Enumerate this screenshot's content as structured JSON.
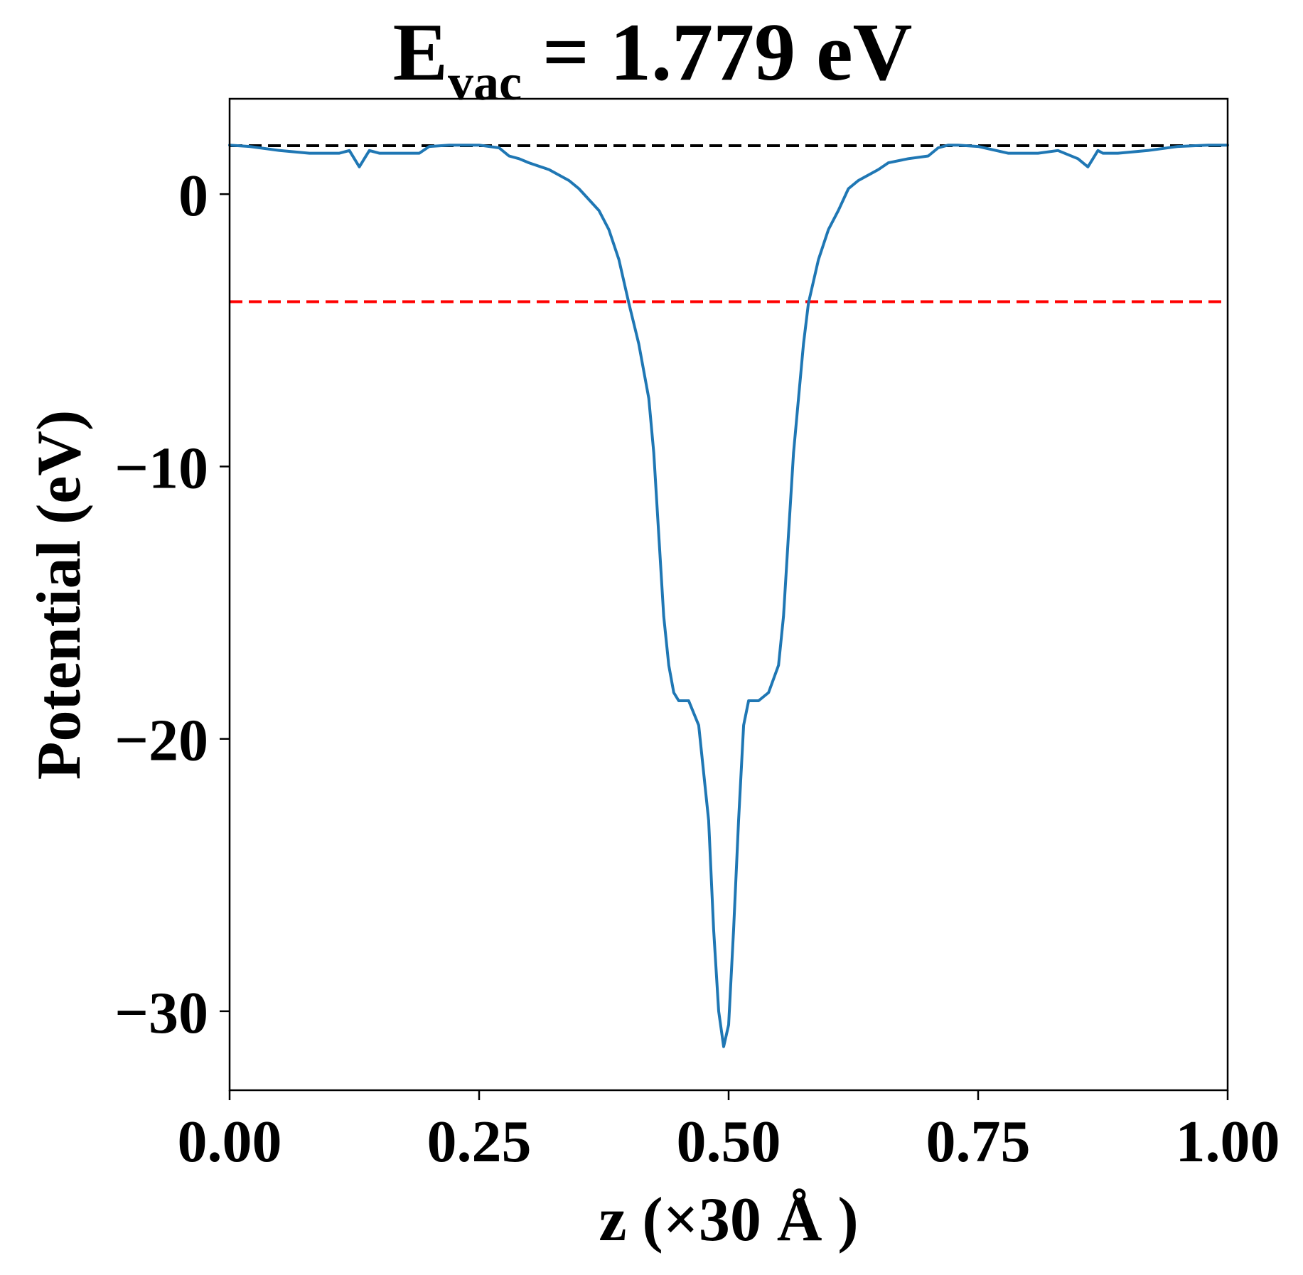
{
  "chart_data": {
    "type": "line",
    "title": {
      "main": "E",
      "subscript": "vac",
      "rest": " = 1.779 eV"
    },
    "xlabel": "z (×30 Å )",
    "ylabel": "Potential (eV)",
    "xlim": [
      0.0,
      1.0
    ],
    "ylim": [
      -32.9,
      3.5
    ],
    "x_ticks": [
      0.0,
      0.25,
      0.5,
      0.75,
      1.0
    ],
    "x_tick_labels": [
      "0.00",
      "0.25",
      "0.50",
      "0.75",
      "1.00"
    ],
    "y_ticks": [
      0,
      -10,
      -20,
      -30
    ],
    "y_tick_labels": [
      "0",
      "−10",
      "−20",
      "−30"
    ],
    "grid": false,
    "series": [
      {
        "color": "#1f77b4",
        "x": [
          0.0,
          0.02,
          0.05,
          0.08,
          0.11,
          0.12,
          0.125,
          0.13,
          0.135,
          0.14,
          0.15,
          0.17,
          0.19,
          0.2,
          0.22,
          0.25,
          0.27,
          0.28,
          0.29,
          0.3,
          0.32,
          0.34,
          0.35,
          0.37,
          0.38,
          0.39,
          0.4,
          0.41,
          0.42,
          0.425,
          0.43,
          0.435,
          0.44,
          0.445,
          0.45,
          0.46,
          0.47,
          0.48,
          0.485,
          0.49,
          0.495,
          0.5,
          0.505,
          0.51,
          0.515,
          0.52,
          0.53,
          0.54,
          0.55,
          0.555,
          0.56,
          0.565,
          0.57,
          0.575,
          0.58,
          0.59,
          0.6,
          0.61,
          0.62,
          0.63,
          0.65,
          0.66,
          0.68,
          0.7,
          0.71,
          0.72,
          0.73,
          0.75,
          0.78,
          0.8,
          0.81,
          0.83,
          0.85,
          0.86,
          0.865,
          0.87,
          0.875,
          0.88,
          0.89,
          0.92,
          0.95,
          0.98,
          1.0
        ],
        "y": [
          1.8,
          1.75,
          1.6,
          1.5,
          1.5,
          1.6,
          1.3,
          1.0,
          1.3,
          1.6,
          1.5,
          1.5,
          1.5,
          1.75,
          1.8,
          1.8,
          1.7,
          1.4,
          1.3,
          1.15,
          0.9,
          0.5,
          0.2,
          -0.6,
          -1.3,
          -2.4,
          -4.0,
          -5.5,
          -7.5,
          -9.5,
          -12.5,
          -15.5,
          -17.3,
          -18.3,
          -18.6,
          -18.6,
          -19.5,
          -23.0,
          -27.0,
          -30.0,
          -31.3,
          -30.5,
          -27.0,
          -23.0,
          -19.5,
          -18.6,
          -18.6,
          -18.3,
          -17.3,
          -15.5,
          -12.5,
          -9.5,
          -7.5,
          -5.5,
          -4.0,
          -2.4,
          -1.3,
          -0.6,
          0.2,
          0.5,
          0.9,
          1.15,
          1.3,
          1.4,
          1.7,
          1.8,
          1.8,
          1.75,
          1.5,
          1.5,
          1.5,
          1.6,
          1.3,
          1.0,
          1.3,
          1.6,
          1.5,
          1.5,
          1.5,
          1.6,
          1.75,
          1.8,
          1.8
        ]
      }
    ],
    "hlines": [
      {
        "y": 1.779,
        "color": "#000000",
        "style": "dashed"
      },
      {
        "y": -3.95,
        "color": "#ff0000",
        "style": "dashed"
      }
    ]
  }
}
